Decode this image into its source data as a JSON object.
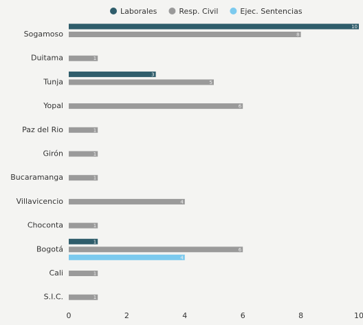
{
  "chart_data": {
    "type": "bar",
    "orientation": "horizontal",
    "categories": [
      "Sogamoso",
      "Duitama",
      "Tunja",
      "Yopal",
      "Paz del Rio",
      "Girón",
      "Bucaramanga",
      "Villavicencio",
      "Choconta",
      "Bogotá",
      "Cali",
      "S.I.C."
    ],
    "series": [
      {
        "name": "Laborales",
        "color": "#2f5d6b",
        "values": [
          10,
          null,
          3,
          null,
          null,
          null,
          null,
          null,
          null,
          1,
          null,
          null
        ]
      },
      {
        "name": "Resp. Civil",
        "color": "#9a9a9a",
        "values": [
          8,
          1,
          5,
          6,
          1,
          1,
          1,
          4,
          1,
          6,
          1,
          1
        ]
      },
      {
        "name": "Ejec. Sentencias",
        "color": "#7ccaee",
        "values": [
          null,
          null,
          null,
          null,
          null,
          null,
          null,
          null,
          null,
          4,
          null,
          null
        ]
      }
    ],
    "xlim": [
      0,
      10
    ],
    "xticks": [
      0,
      2,
      4,
      6,
      8,
      10
    ],
    "grid": false,
    "legend": "top"
  }
}
